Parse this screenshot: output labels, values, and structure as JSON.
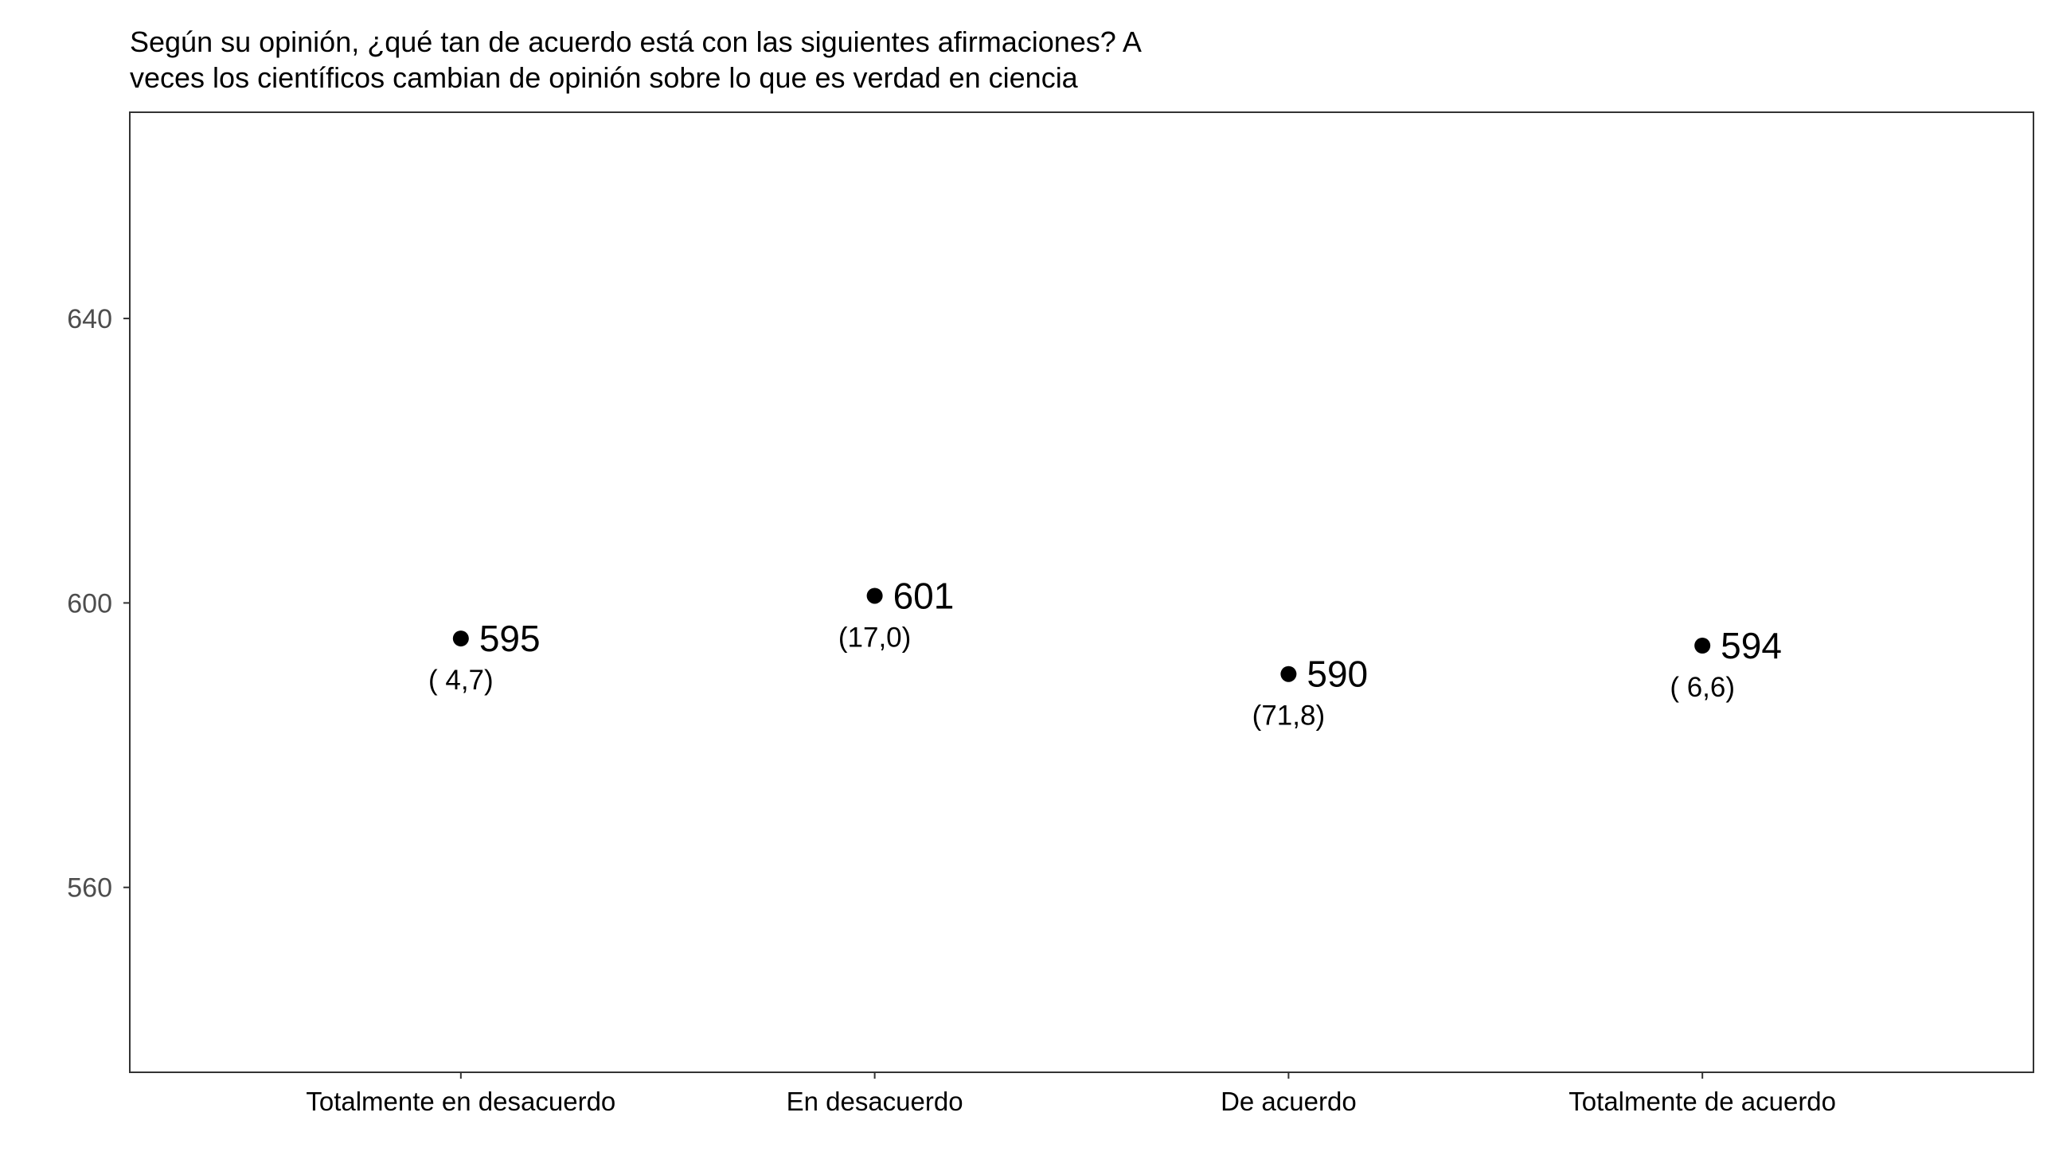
{
  "chart_data": {
    "type": "scatter",
    "title_lines": [
      "Según su opinión, ¿qué tan de acuerdo está con las siguientes afirmaciones? A",
      "veces los científicos cambian de opinión sobre lo que es verdad en ciencia"
    ],
    "xlabel": "",
    "ylabel": "",
    "categories": [
      "Totalmente en desacuerdo",
      "En desacuerdo",
      "De acuerdo",
      "Totalmente de acuerdo"
    ],
    "values": [
      595,
      601,
      590,
      594
    ],
    "value_labels": [
      "595",
      "601",
      "590",
      "594"
    ],
    "percent_labels": [
      "( 4,7)",
      "(17,0)",
      "(71,8)",
      "( 6,6)"
    ],
    "y_ticks": [
      560,
      600,
      640
    ],
    "y_tick_labels": [
      "560",
      "600",
      "640"
    ],
    "ylim": [
      534,
      669
    ],
    "grid": false,
    "legend": "none",
    "colors": {
      "point": "#000000",
      "text": "#000000",
      "tick_text": "#4d4d4d",
      "panel_border": "#333333"
    }
  }
}
